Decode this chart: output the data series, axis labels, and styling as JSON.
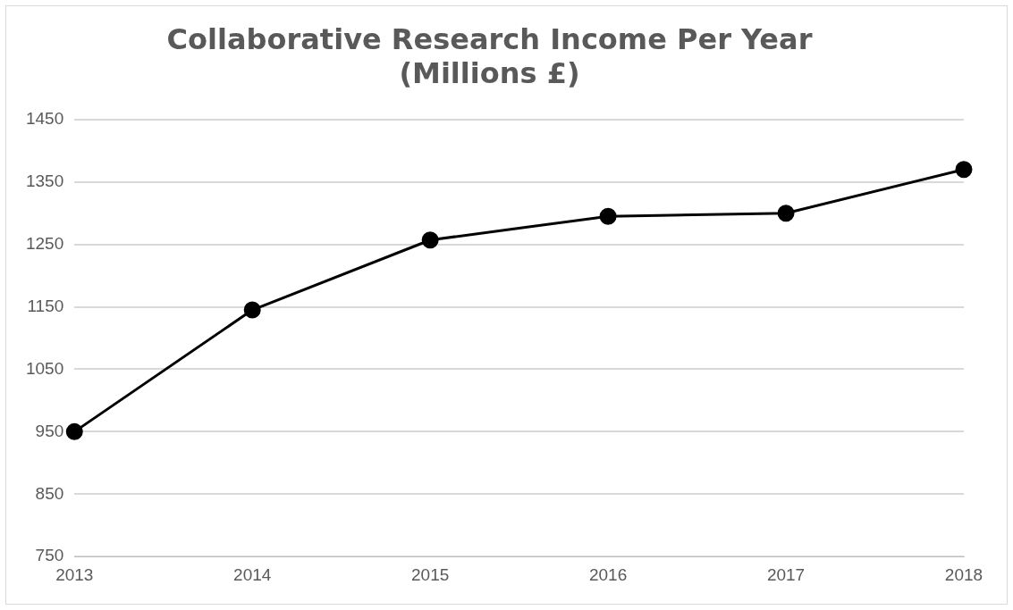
{
  "chart_data": {
    "type": "line",
    "title": "Collaborative Research Income Per Year\n(Millions £)",
    "categories": [
      "2013",
      "2014",
      "2015",
      "2016",
      "2017",
      "2018"
    ],
    "series": [
      {
        "color": "#000000",
        "values": [
          950,
          1145,
          1257,
          1295,
          1300,
          1370
        ]
      }
    ],
    "ylim": [
      750,
      1450
    ],
    "yticks": [
      750,
      850,
      950,
      1050,
      1150,
      1250,
      1350,
      1450
    ],
    "grid": "y",
    "legend": false,
    "marker": "circle",
    "line_style": "solid"
  }
}
